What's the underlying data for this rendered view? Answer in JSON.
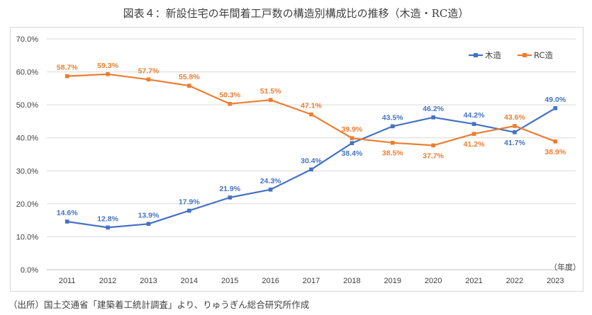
{
  "chart_data": {
    "type": "line",
    "title": "図表４：新設住宅の年間着工戸数の構造別構成比の推移（木造・RC造）",
    "xlabel": "",
    "ylabel": "",
    "unit_label": "（年度）",
    "categories": [
      "2011",
      "2012",
      "2013",
      "2014",
      "2015",
      "2016",
      "2017",
      "2018",
      "2019",
      "2020",
      "2021",
      "2022",
      "2023"
    ],
    "ylim": [
      0,
      70
    ],
    "yticks": [
      "0.0%",
      "10.0%",
      "20.0%",
      "30.0%",
      "40.0%",
      "50.0%",
      "60.0%",
      "70.0%"
    ],
    "grid": true,
    "legend_position": "top-right",
    "series": [
      {
        "name": "木造",
        "color": "#4472c4",
        "values": [
          14.6,
          12.8,
          13.9,
          17.9,
          21.9,
          24.3,
          30.4,
          38.4,
          43.5,
          46.2,
          44.2,
          41.7,
          49.0
        ],
        "labels": [
          "14.6%",
          "12.8%",
          "13.9%",
          "17.9%",
          "21.9%",
          "24.3%",
          "30.4%",
          "38.4%",
          "43.5%",
          "46.2%",
          "44.2%",
          "41.7%",
          "49.0%"
        ]
      },
      {
        "name": "RC造",
        "color": "#ed7d31",
        "values": [
          58.7,
          59.3,
          57.7,
          55.8,
          50.3,
          51.5,
          47.1,
          39.9,
          38.5,
          37.7,
          41.2,
          43.6,
          38.9
        ],
        "labels": [
          "58.7%",
          "59.3%",
          "57.7%",
          "55.8%",
          "50.3%",
          "51.5%",
          "47.1%",
          "39.9%",
          "38.5%",
          "37.7%",
          "41.2%",
          "43.6%",
          "38.9%"
        ]
      }
    ]
  },
  "source": "（出所）国土交通省「建築着工統計調査」より、りゅうぎん総合研究所作成"
}
